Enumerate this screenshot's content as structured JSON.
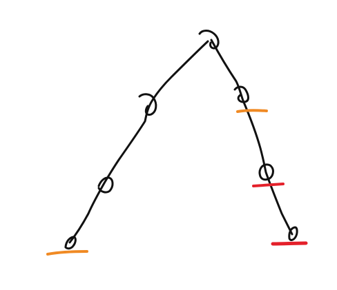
{
  "drawing": {
    "ink_color": "#111111",
    "background": "#ffffff",
    "marks": [
      {
        "name": "orange-mark",
        "color": "#f08a24"
      },
      {
        "name": "red-mark",
        "color": "#e4202a"
      }
    ],
    "nodes": [
      {
        "name": "top-knot",
        "kind": "loop"
      },
      {
        "name": "left-upper-knot",
        "kind": "loop"
      },
      {
        "name": "left-lower-knot",
        "kind": "loop"
      },
      {
        "name": "left-foot-knot",
        "kind": "loop"
      },
      {
        "name": "right-upper-knot",
        "kind": "loop"
      },
      {
        "name": "right-middle-knot",
        "kind": "loop"
      },
      {
        "name": "right-foot-knot",
        "kind": "loop"
      }
    ]
  }
}
